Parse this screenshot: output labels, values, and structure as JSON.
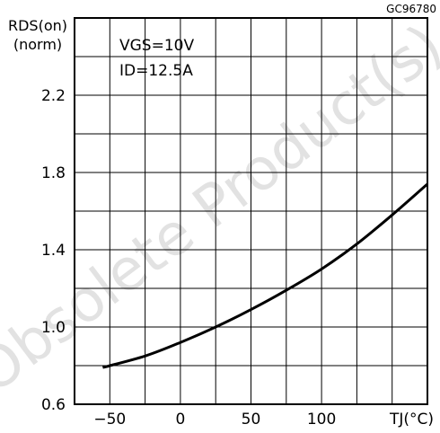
{
  "chart_data": {
    "type": "line",
    "figure_id": "GC96780",
    "ylabel": "RDS(on)",
    "ylabel_sub": "(norm)",
    "xlabel": "TJ(°C)",
    "xlim": [
      -75,
      175
    ],
    "ylim": [
      0.6,
      2.6
    ],
    "x_ticks": [
      -50,
      0,
      50,
      100
    ],
    "y_ticks": [
      0.6,
      1.0,
      1.4,
      1.8,
      2.2
    ],
    "x_tick_labels": [
      "−50",
      "0",
      "50",
      "100"
    ],
    "y_tick_labels": [
      "0.6",
      "1.0",
      "1.4",
      "1.8",
      "2.2"
    ],
    "x_grid_step": 25,
    "y_grid_step": 0.2,
    "grid": true,
    "conditions": [
      "VGS=10V",
      "ID=12.5A"
    ],
    "series": [
      {
        "x": [
          -55,
          -25,
          0,
          25,
          50,
          75,
          100,
          125,
          150,
          175
        ],
        "values": [
          0.79,
          0.85,
          0.92,
          1.0,
          1.09,
          1.19,
          1.3,
          1.43,
          1.58,
          1.74
        ]
      }
    ],
    "watermark": "Obsolete Product(s)"
  }
}
